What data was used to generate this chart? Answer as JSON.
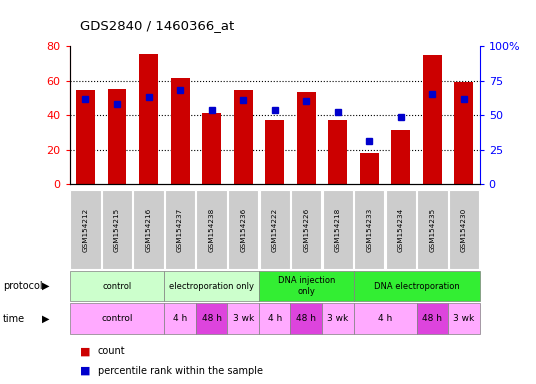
{
  "title": "GDS2840 / 1460366_at",
  "samples": [
    "GSM154212",
    "GSM154215",
    "GSM154216",
    "GSM154237",
    "GSM154238",
    "GSM154236",
    "GSM154222",
    "GSM154226",
    "GSM154218",
    "GSM154233",
    "GSM154234",
    "GSM154235",
    "GSM154230"
  ],
  "counts": [
    54.5,
    55.0,
    75.5,
    61.5,
    41.0,
    54.5,
    37.5,
    53.5,
    37.0,
    18.0,
    31.5,
    75.0,
    59.0
  ],
  "percentiles": [
    62,
    58,
    63,
    68,
    54,
    61,
    54,
    60,
    52,
    31,
    49,
    65,
    62
  ],
  "bar_color": "#cc0000",
  "dot_color": "#0000cc",
  "ylim_left": [
    0,
    80
  ],
  "ylim_right": [
    0,
    100
  ],
  "yticks_left": [
    0,
    20,
    40,
    60,
    80
  ],
  "yticks_right": [
    0,
    25,
    50,
    75,
    100
  ],
  "ytick_labels_right": [
    "0",
    "25",
    "50",
    "75",
    "100%"
  ],
  "protocol_groups": [
    {
      "label": "control",
      "start": 0,
      "end": 3,
      "color": "#ccffcc"
    },
    {
      "label": "electroporation only",
      "start": 3,
      "end": 6,
      "color": "#ccffcc"
    },
    {
      "label": "DNA injection\nonly",
      "start": 6,
      "end": 9,
      "color": "#33ee33"
    },
    {
      "label": "DNA electroporation",
      "start": 9,
      "end": 13,
      "color": "#33ee33"
    }
  ],
  "time_groups": [
    {
      "label": "control",
      "start": 0,
      "end": 3,
      "color": "#ffaaff"
    },
    {
      "label": "4 h",
      "start": 3,
      "end": 4,
      "color": "#ffaaff"
    },
    {
      "label": "48 h",
      "start": 4,
      "end": 5,
      "color": "#dd44dd"
    },
    {
      "label": "3 wk",
      "start": 5,
      "end": 6,
      "color": "#ffaaff"
    },
    {
      "label": "4 h",
      "start": 6,
      "end": 7,
      "color": "#ffaaff"
    },
    {
      "label": "48 h",
      "start": 7,
      "end": 8,
      "color": "#dd44dd"
    },
    {
      "label": "3 wk",
      "start": 8,
      "end": 9,
      "color": "#ffaaff"
    },
    {
      "label": "4 h",
      "start": 9,
      "end": 11,
      "color": "#ffaaff"
    },
    {
      "label": "48 h",
      "start": 11,
      "end": 12,
      "color": "#dd44dd"
    },
    {
      "label": "3 wk",
      "start": 12,
      "end": 13,
      "color": "#ffaaff"
    }
  ],
  "legend_count_color": "#cc0000",
  "legend_dot_color": "#0000cc",
  "bg_color": "#ffffff",
  "sample_box_color": "#cccccc",
  "fig_width": 5.36,
  "fig_height": 3.84,
  "fig_dpi": 100
}
